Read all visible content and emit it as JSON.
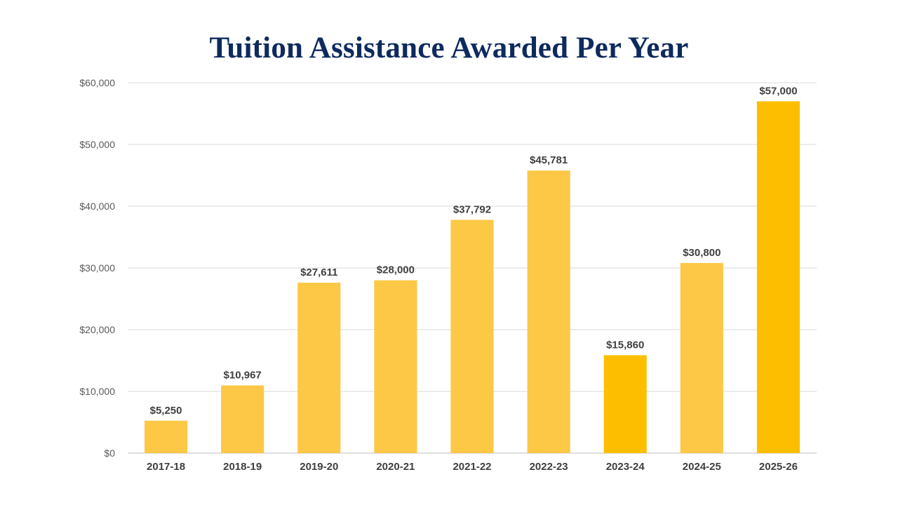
{
  "chart_data": {
    "type": "bar",
    "title": "Tuition Assistance Awarded Per Year",
    "xlabel": "",
    "ylabel": "",
    "categories": [
      "2017-18",
      "2018-19",
      "2019-20",
      "2020-21",
      "2021-22",
      "2022-23",
      "2023-24",
      "2024-25",
      "2025-26"
    ],
    "values": [
      5250,
      10967,
      27611,
      28000,
      37792,
      45781,
      15860,
      30800,
      57000
    ],
    "data_labels": [
      "$5,250",
      "$10,967",
      "$27,611",
      "$28,000",
      "$37,792",
      "$45,781",
      "$15,860",
      "$30,800",
      "$57,000"
    ],
    "bar_colors": [
      "#fcc845",
      "#fcc845",
      "#fcc845",
      "#fcc845",
      "#fcc845",
      "#fcc845",
      "#fdbe00",
      "#fcc845",
      "#fdbe00"
    ],
    "ylim": [
      0,
      60000
    ],
    "yticks": [
      0,
      10000,
      20000,
      30000,
      40000,
      50000,
      60000
    ],
    "ytick_labels": [
      "$0",
      "$10,000",
      "$20,000",
      "$30,000",
      "$40,000",
      "$50,000",
      "$60,000"
    ],
    "grid": true,
    "legend": "none",
    "colors": {
      "title": "#0e2a5e",
      "gridline": "#d9d9d9",
      "axis_text": "#595959",
      "label_text": "#404040"
    }
  }
}
